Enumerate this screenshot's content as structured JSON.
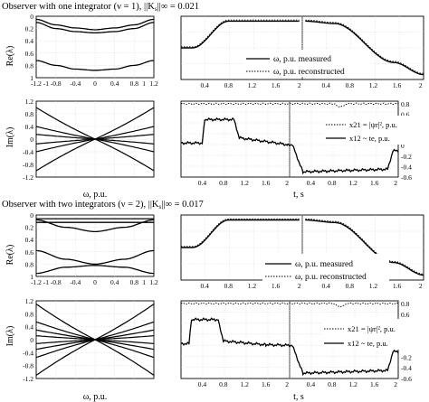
{
  "sections": [
    {
      "title": "Observer with one integrator (ν = 1), ||K",
      "title_sub": "s",
      "title_tail": "||∞ = 0.021",
      "re_ylabel": "Re(λ)",
      "im_ylabel": "Im(λ)",
      "eig_xlabel": "ω, p.u.",
      "time_xlabel": "t, s",
      "legend_omega": [
        "ω, p.u. measured",
        "ω, p.u. reconstructed"
      ],
      "legend_x": [
        "x21 = |ψr|², p.u.",
        "x12 ~ te, p.u."
      ]
    },
    {
      "title": "Observer with two integrators (ν = 2), ||K",
      "title_sub": "s",
      "title_tail": "||∞ = 0.017",
      "re_ylabel": "Re(λ)",
      "im_ylabel": "Im(λ)",
      "eig_xlabel": "ω, p.u.",
      "time_xlabel": "t, s",
      "legend_omega": [
        "ω, p.u. measured",
        "ω, p.u. reconstructed"
      ],
      "legend_x": [
        "x21 = |ψr|², p.u.",
        "x12 ~ te, p.u."
      ]
    }
  ],
  "chart_data": [
    {
      "type": "line",
      "panel": "ν=1 Re(λ)",
      "ylabel": "Re(λ)",
      "yticks": [
        "0",
        "0.2",
        "0.4",
        "0.6",
        "0.8",
        "1"
      ],
      "xticks": [
        "-1.2",
        "-1",
        "-0.8",
        "-0.4",
        "0",
        "0.4",
        "0.8",
        "1",
        "1.2"
      ],
      "xlim": [
        -1.2,
        1.2
      ],
      "ylim": [
        0,
        1
      ],
      "y_inverted": true,
      "series": [
        {
          "x": [
            -1.2,
            -0.8,
            -0.4,
            0,
            0.4,
            0.8,
            1.2
          ],
          "values": [
            0.05,
            0.14,
            0.19,
            0.22,
            0.19,
            0.14,
            0.05
          ]
        },
        {
          "x": [
            -1.2,
            -0.8,
            -0.4,
            0,
            0.4,
            0.8,
            1.2
          ],
          "values": [
            0.1,
            0.2,
            0.25,
            0.27,
            0.25,
            0.2,
            0.1
          ]
        },
        {
          "x": [
            -1.2,
            -0.8,
            -0.4,
            0,
            0.4,
            0.8,
            1.2
          ],
          "values": [
            0.72,
            0.8,
            0.86,
            0.88,
            0.86,
            0.8,
            0.72
          ]
        }
      ]
    },
    {
      "type": "line",
      "panel": "ν=1 Im(λ)",
      "ylabel": "Im(λ)",
      "yticks": [
        "-1.2",
        "-0.8",
        "-0.4",
        "0",
        "0.4",
        "0.8",
        "1.2"
      ],
      "xticks": [
        "-1.2",
        "-1",
        "-0.8",
        "-0.4",
        "0",
        "0.4",
        "0.8",
        "1",
        "1.2"
      ],
      "xlim": [
        -1.2,
        1.2
      ],
      "ylim": [
        -1.2,
        1.2
      ],
      "series": [
        {
          "x": [
            -1.2,
            1.2
          ],
          "values": [
            1.0,
            -1.0
          ]
        },
        {
          "x": [
            -1.2,
            1.2
          ],
          "values": [
            -1.0,
            1.0
          ]
        },
        {
          "x": [
            -1.2,
            1.2
          ],
          "values": [
            0.4,
            -0.4
          ]
        },
        {
          "x": [
            -1.2,
            1.2
          ],
          "values": [
            -0.4,
            0.4
          ]
        },
        {
          "x": [
            -1.2,
            1.2
          ],
          "values": [
            0.15,
            -0.15
          ]
        },
        {
          "x": [
            -1.2,
            1.2
          ],
          "values": [
            -0.15,
            0.15
          ]
        }
      ]
    },
    {
      "type": "line",
      "panel": "ν=1 ω response",
      "xticks": [
        "0.4",
        "0.8",
        "1.2",
        "1.6",
        "2",
        "0.4",
        "0.8",
        "1.2",
        "1.6",
        "2"
      ],
      "xlabel": "t, s",
      "series": [
        {
          "name": "ω, p.u. measured",
          "t": [
            0.0,
            0.2,
            0.8,
            2.0,
            2.1,
            2.6,
            3.6,
            4.1
          ],
          "values": [
            0.0,
            0.0,
            0.55,
            0.55,
            0.55,
            0.5,
            -0.3,
            -0.55
          ]
        },
        {
          "name": "ω, p.u. reconstructed",
          "t": [
            0.0,
            0.2,
            0.8,
            2.0,
            2.1,
            2.6,
            3.6,
            4.1
          ],
          "values": [
            0.0,
            0.0,
            0.55,
            0.55,
            0.55,
            0.5,
            -0.3,
            -0.55
          ]
        }
      ]
    },
    {
      "type": "line",
      "panel": "ν=1 states",
      "yticks": [
        "-0.6",
        "-0.4",
        "-0.2",
        "0",
        "0.2",
        "0.4",
        "0.6",
        "0.8"
      ],
      "xlabel": "t, s",
      "series": [
        {
          "name": "x21 = |ψr|², p.u.",
          "values": [
            0.8,
            0.8,
            0.8,
            0.8
          ]
        },
        {
          "name": "x12 ~ te, p.u.",
          "t": [
            0.0,
            0.4,
            0.45,
            1.0,
            1.1,
            1.8,
            2.0,
            2.1,
            2.3,
            3.9,
            4.0,
            4.1
          ],
          "values": [
            0.05,
            0.05,
            0.5,
            0.5,
            0.15,
            0.05,
            0.02,
            0.02,
            -0.5,
            -0.45,
            -0.1,
            -0.1
          ]
        }
      ]
    },
    {
      "type": "line",
      "panel": "ν=2 Re(λ)",
      "ylabel": "Re(λ)",
      "yticks": [
        "0",
        "0.2",
        "0.4",
        "0.6",
        "0.8",
        "1"
      ],
      "xticks": [
        "-1.2",
        "-1",
        "-0.8",
        "-0.4",
        "0",
        "0.4",
        "0.8",
        "1",
        "1.2"
      ],
      "xlim": [
        -1.2,
        1.2
      ],
      "ylim": [
        0,
        1
      ],
      "y_inverted": true,
      "series": [
        {
          "x": [
            -1.2,
            0,
            1.2
          ],
          "values": [
            0.06,
            0.06,
            0.06
          ]
        },
        {
          "x": [
            -1.2,
            0,
            1.2
          ],
          "values": [
            0.12,
            0.12,
            0.12
          ]
        },
        {
          "x": [
            -1.2,
            -0.6,
            0,
            0.6,
            1.2
          ],
          "values": [
            0.08,
            0.2,
            0.27,
            0.2,
            0.08
          ]
        },
        {
          "x": [
            -1.2,
            -0.6,
            0,
            0.6,
            1.2
          ],
          "values": [
            0.58,
            0.72,
            0.8,
            0.72,
            0.58
          ]
        },
        {
          "x": [
            -1.2,
            -0.6,
            0,
            0.6,
            1.2
          ],
          "values": [
            0.95,
            0.85,
            0.82,
            0.85,
            0.95
          ]
        }
      ]
    },
    {
      "type": "line",
      "panel": "ν=2 Im(λ)",
      "ylabel": "Im(λ)",
      "yticks": [
        "-1.2",
        "-0.8",
        "-0.4",
        "0",
        "0.4",
        "0.8",
        "1.2"
      ],
      "xticks": [
        "-1.2",
        "-1",
        "-0.8",
        "-0.4",
        "0",
        "0.4",
        "0.8",
        "1",
        "1.2"
      ],
      "xlim": [
        -1.2,
        1.2
      ],
      "ylim": [
        -1.2,
        1.2
      ],
      "series": [
        {
          "x": [
            -1.2,
            1.2
          ],
          "values": [
            1.1,
            -1.1
          ]
        },
        {
          "x": [
            -1.2,
            1.2
          ],
          "values": [
            -1.1,
            1.1
          ]
        },
        {
          "x": [
            -1.2,
            1.2
          ],
          "values": [
            0.55,
            -0.55
          ]
        },
        {
          "x": [
            -1.2,
            1.2
          ],
          "values": [
            -0.55,
            0.55
          ]
        },
        {
          "x": [
            -1.2,
            1.2
          ],
          "values": [
            0.3,
            -0.3
          ]
        },
        {
          "x": [
            -1.2,
            1.2
          ],
          "values": [
            -0.3,
            0.3
          ]
        },
        {
          "x": [
            -1.2,
            1.2
          ],
          "values": [
            0.12,
            -0.12
          ]
        },
        {
          "x": [
            -1.2,
            1.2
          ],
          "values": [
            -0.12,
            0.12
          ]
        }
      ]
    },
    {
      "type": "line",
      "panel": "ν=2 ω response",
      "xticks": [
        "0.4",
        "0.8",
        "1.2",
        "1.6",
        "2",
        "0.4",
        "0.8",
        "1.2",
        "1.6",
        "2"
      ],
      "xlabel": "t, s",
      "series": [
        {
          "name": "ω, p.u. measured",
          "t": [
            0.0,
            0.2,
            0.8,
            2.0,
            2.1,
            2.6,
            3.6,
            4.1
          ],
          "values": [
            0.0,
            0.0,
            0.55,
            0.55,
            0.55,
            0.5,
            -0.3,
            -0.55
          ]
        },
        {
          "name": "ω, p.u. reconstructed",
          "t": [
            0.0,
            0.2,
            0.8,
            2.0,
            2.1,
            2.6,
            3.6,
            4.1
          ],
          "values": [
            0.0,
            0.0,
            0.55,
            0.55,
            0.55,
            0.5,
            -0.3,
            -0.55
          ]
        }
      ]
    },
    {
      "type": "line",
      "panel": "ν=2 states",
      "yticks": [
        "-0.6",
        "-0.4",
        "-0.2",
        "0",
        "0.2",
        "0.4",
        "0.6",
        "0.8"
      ],
      "xlabel": "t, s",
      "series": [
        {
          "name": "x21 = |ψr|², p.u.",
          "values": [
            0.8,
            0.8,
            0.8,
            0.8
          ]
        },
        {
          "name": "x12 ~ te, p.u.",
          "t": [
            0.0,
            0.15,
            0.2,
            0.7,
            0.8,
            1.6,
            2.0,
            2.1,
            2.3,
            3.9,
            4.0,
            4.1
          ],
          "values": [
            0.05,
            0.05,
            0.5,
            0.5,
            0.1,
            0.03,
            0.02,
            0.02,
            -0.5,
            -0.45,
            -0.1,
            -0.1
          ]
        }
      ]
    }
  ]
}
